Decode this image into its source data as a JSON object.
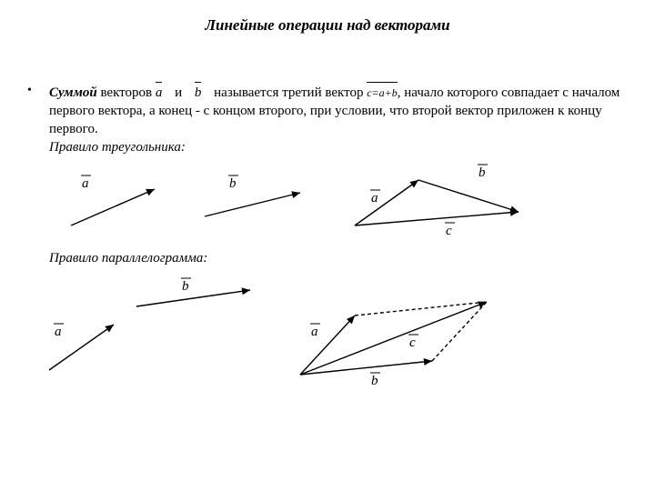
{
  "title": "Линейные операции над векторами",
  "para": {
    "lead": "Суммой",
    "t1": " векторов ",
    "t2": " и ",
    "t3": " называется третий  вектор ",
    "t4": ", начало которого совпадает с началом первого вектора, а конец -  с концом второго, при условии, что второй вектор приложен к концу первого.",
    "rule1": "Правило треугольника:",
    "rule2": "Правило параллелограмма:"
  },
  "sym": {
    "a": "a",
    "b": "b",
    "c": "c",
    "sum": "c=a+b"
  },
  "style": {
    "stroke": "#000000",
    "strokeWidth": 1.4,
    "dash": "4,3",
    "font": "italic 14px 'Times New Roman', serif"
  }
}
